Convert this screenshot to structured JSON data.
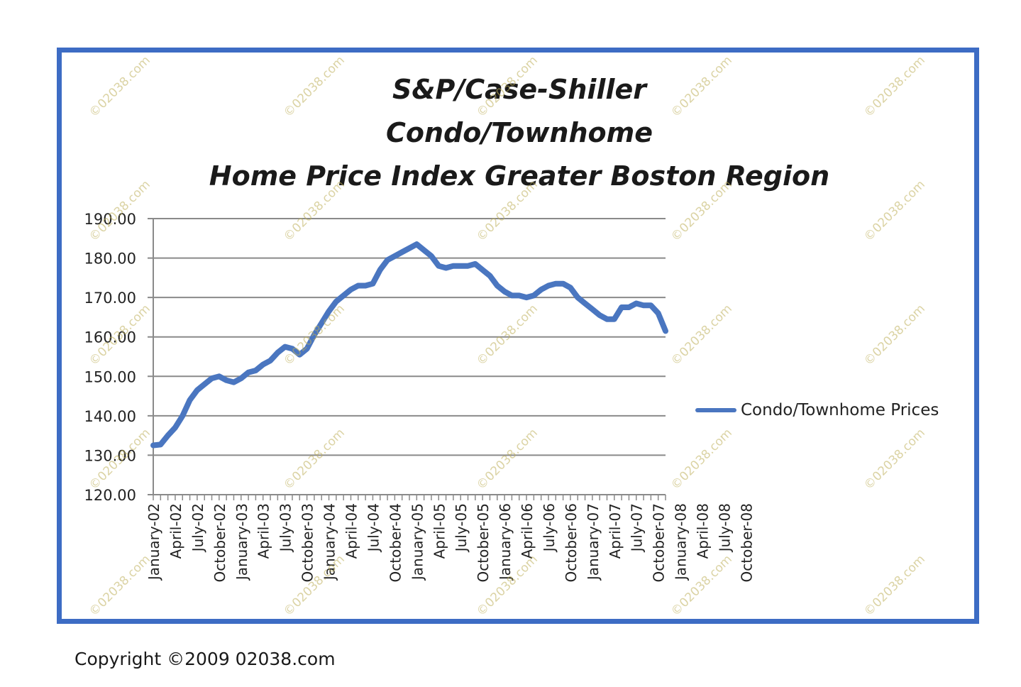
{
  "chart_data": {
    "type": "line",
    "title_lines": [
      "S&P/Case-Shiller",
      "Condo/Townhome",
      "Home Price Index Greater Boston Region"
    ],
    "xlabel": "",
    "ylabel": "",
    "ylim": [
      120,
      190
    ],
    "yticks": [
      "190.00",
      "180.00",
      "170.00",
      "160.00",
      "150.00",
      "140.00",
      "130.00",
      "120.00"
    ],
    "grid": "horizontal",
    "legend_position": "right",
    "x_tick_labels": [
      "January-02",
      "April-02",
      "July-02",
      "October-02",
      "January-03",
      "April-03",
      "July-03",
      "October-03",
      "January-04",
      "April-04",
      "July-04",
      "October-04",
      "January-05",
      "April-05",
      "July-05",
      "October-05",
      "January-06",
      "April-06",
      "July-06",
      "October-06",
      "January-07",
      "April-07",
      "July-07",
      "October-07",
      "January-08",
      "April-08",
      "July-08",
      "October-08"
    ],
    "series": [
      {
        "name": "Condo/Townhome Prices",
        "color": "#4a76c0",
        "values": [
          132.5,
          132.7,
          135,
          137,
          140,
          144,
          146.5,
          148,
          149.5,
          150,
          149,
          148.5,
          149.5,
          151,
          151.5,
          153,
          154,
          156,
          157.5,
          157,
          155.5,
          157,
          160.5,
          163.5,
          166.5,
          169,
          170.5,
          172,
          173,
          173,
          173.5,
          177,
          179.5,
          180.5,
          181.5,
          182.5,
          183.5,
          182,
          180.5,
          178,
          177.5,
          178,
          178,
          178,
          178.5,
          177,
          175.5,
          173,
          171.5,
          170.5,
          170.5,
          170,
          170.5,
          172,
          173,
          173.5,
          173.5,
          172.5,
          170,
          168.5,
          167,
          165.5,
          164.5,
          164.5,
          167.5,
          167.5,
          168.5,
          168,
          168,
          166,
          161.5
        ]
      }
    ]
  },
  "watermark_text": "©02038.com",
  "copyright": "Copyright ©2009 02038.com"
}
